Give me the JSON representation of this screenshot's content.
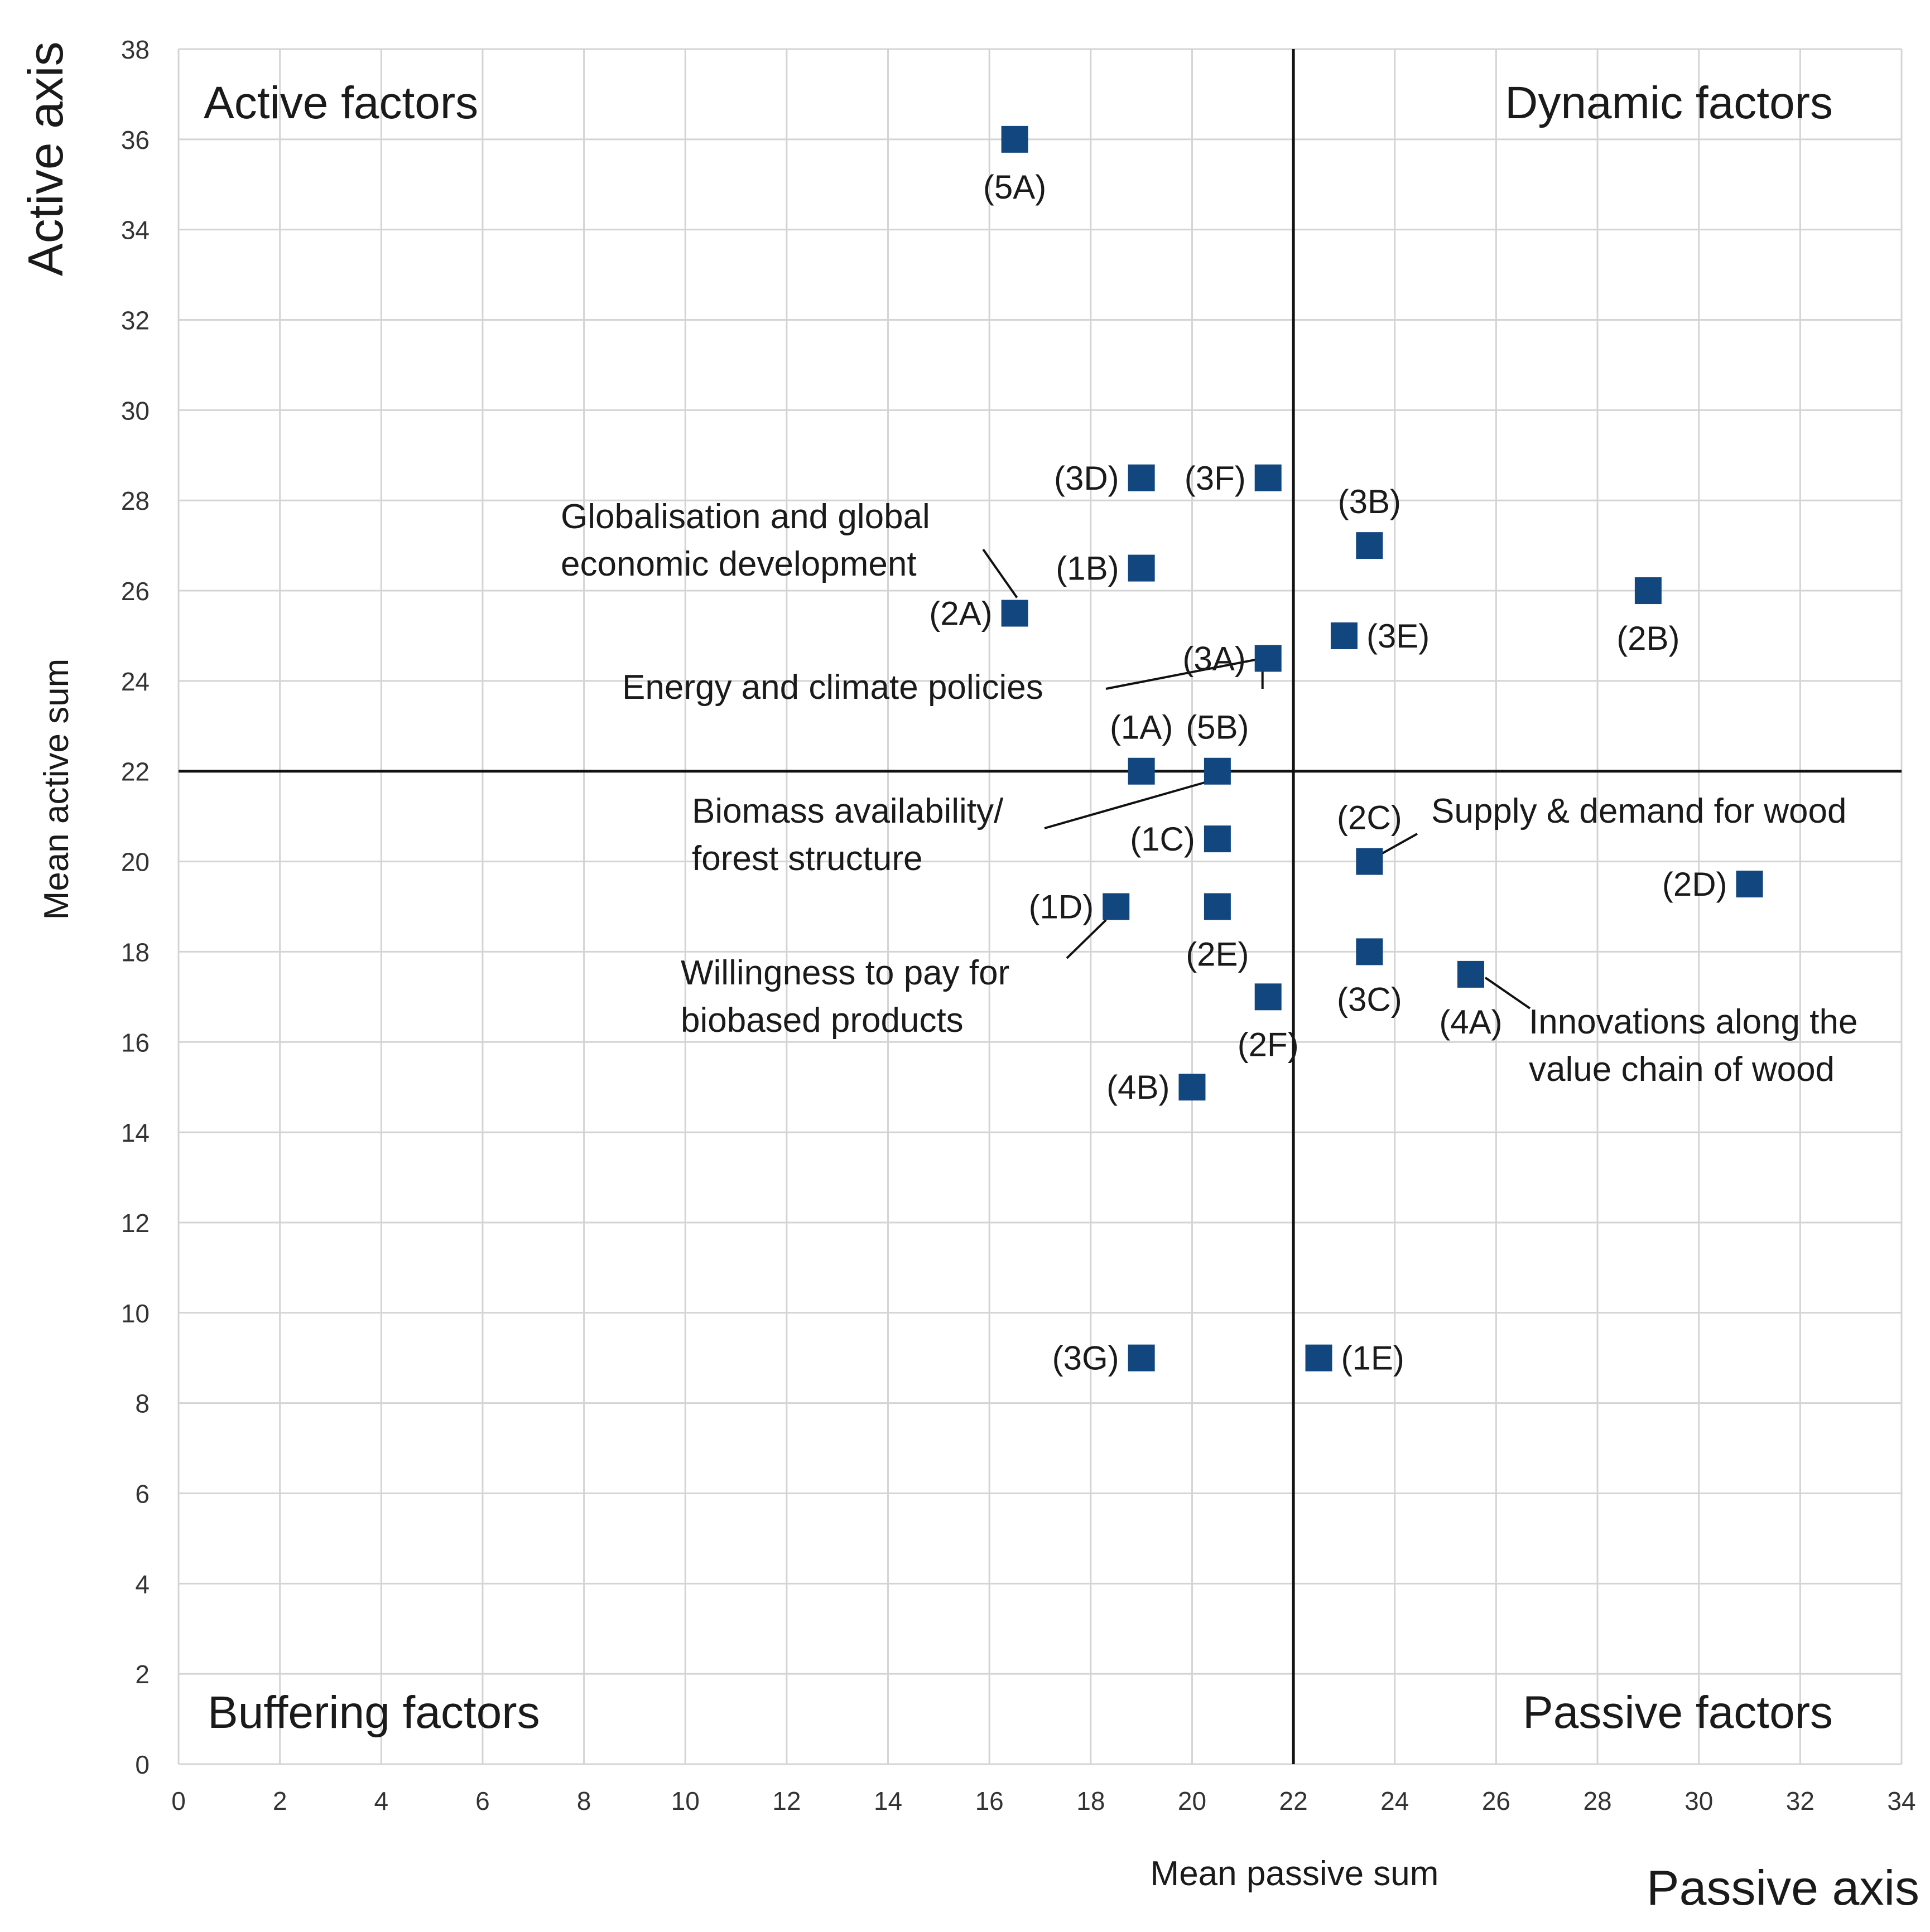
{
  "chart_data": {
    "type": "scatter",
    "title": "",
    "xlabel": "Mean passive sum",
    "ylabel": "Mean active sum",
    "x_axis_title": "Passive axis",
    "y_axis_title": "Active axis",
    "xlim": [
      0,
      34
    ],
    "ylim": [
      0,
      38
    ],
    "x_ticks": [
      0,
      2,
      4,
      6,
      8,
      10,
      12,
      14,
      16,
      18,
      20,
      22,
      24,
      26,
      28,
      30,
      32,
      34
    ],
    "y_ticks": [
      0,
      2,
      4,
      6,
      8,
      10,
      12,
      14,
      16,
      18,
      20,
      22,
      24,
      26,
      28,
      30,
      32,
      34,
      36,
      38
    ],
    "grid": true,
    "marker_color": "#12467f",
    "mean_lines": {
      "x": 22,
      "y": 22
    },
    "quadrants": {
      "top_left": "Active  factors",
      "top_right": "Dynamic  factors",
      "bottom_left": "Buffering  factors",
      "bottom_right": "Passive  factors"
    },
    "points": [
      {
        "label": "(5A)",
        "x": 16.5,
        "y": 36,
        "label_pos": "below"
      },
      {
        "label": "(3D)",
        "x": 19,
        "y": 28.5,
        "label_pos": "left"
      },
      {
        "label": "(3F)",
        "x": 21.5,
        "y": 28.5,
        "label_pos": "left"
      },
      {
        "label": "(3B)",
        "x": 23.5,
        "y": 27,
        "label_pos": "above"
      },
      {
        "label": "(1B)",
        "x": 19,
        "y": 26.5,
        "label_pos": "left"
      },
      {
        "label": "(2B)",
        "x": 29,
        "y": 26,
        "label_pos": "below"
      },
      {
        "label": "(2A)",
        "x": 16.5,
        "y": 25.5,
        "label_pos": "left"
      },
      {
        "label": "(3E)",
        "x": 23,
        "y": 25,
        "label_pos": "right"
      },
      {
        "label": "(3A)",
        "x": 21.5,
        "y": 24.5,
        "label_pos": "left"
      },
      {
        "label": "(1A)",
        "x": 19,
        "y": 22,
        "label_pos": "above"
      },
      {
        "label": "(5B)",
        "x": 20.5,
        "y": 22,
        "label_pos": "above"
      },
      {
        "label": "(1C)",
        "x": 20.5,
        "y": 20.5,
        "label_pos": "left"
      },
      {
        "label": "(2C)",
        "x": 23.5,
        "y": 20,
        "label_pos": "above"
      },
      {
        "label": "(2D)",
        "x": 31,
        "y": 19.5,
        "label_pos": "left"
      },
      {
        "label": "(1D)",
        "x": 18.5,
        "y": 19,
        "label_pos": "left"
      },
      {
        "label": "(2E)",
        "x": 20.5,
        "y": 19,
        "label_pos": "below"
      },
      {
        "label": "(3C)",
        "x": 23.5,
        "y": 18,
        "label_pos": "below"
      },
      {
        "label": "(4A)",
        "x": 25.5,
        "y": 17.5,
        "label_pos": "below"
      },
      {
        "label": "(2F)",
        "x": 21.5,
        "y": 17,
        "label_pos": "below"
      },
      {
        "label": "(4B)",
        "x": 20,
        "y": 15,
        "label_pos": "left"
      },
      {
        "label": "(3G)",
        "x": 19,
        "y": 9,
        "label_pos": "left"
      },
      {
        "label": "(1E)",
        "x": 22.5,
        "y": 9,
        "label_pos": "right"
      }
    ],
    "annotations": [
      {
        "lines": [
          "Globalisation  and  global",
          "economic  development"
        ],
        "target": "(2A)"
      },
      {
        "lines": [
          "Energy  and  climate  policies"
        ],
        "target": "(3A)"
      },
      {
        "lines": [
          "Biomass  availability/",
          "forest  structure"
        ],
        "target": "(5B)"
      },
      {
        "lines": [
          "Supply  &  demand  for  wood"
        ],
        "target": "(2C)"
      },
      {
        "lines": [
          "Willingness  to  pay  for",
          "biobased  products"
        ],
        "target": "(1D)"
      },
      {
        "lines": [
          "Innovations  along  the",
          "value  chain  of  wood"
        ],
        "target": "(4A)"
      }
    ]
  }
}
